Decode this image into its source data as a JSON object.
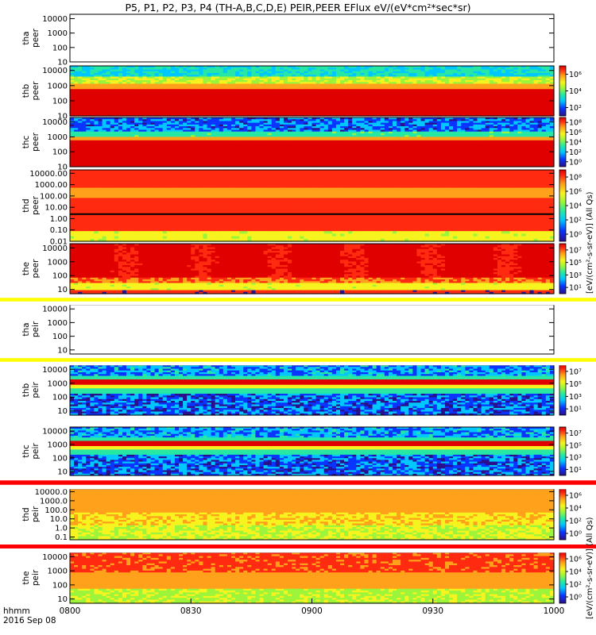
{
  "chart_data": {
    "type": "heatmap",
    "title": "P5, P1, P2, P3, P4 (TH-A,B,C,D,E) PEIR,PEER EFlux eV/(eV*cm²*sec*sr)",
    "x_ticks": [
      "0800",
      "0830",
      "0900",
      "0930",
      "1000"
    ],
    "x_range": [
      "0800",
      "1000"
    ],
    "x_label": "hhmm",
    "date_label": "2016 Sep 08",
    "y_scale": "log",
    "colormap": [
      "#2a0f8a",
      "#0a34ff",
      "#00c8ff",
      "#27e7a4",
      "#9cf53a",
      "#f7f31e",
      "#ffa11a",
      "#ff2b10",
      "#e00000"
    ],
    "colorbar_label_peer": "[eV/(cm²-s-sr-eV)] (All Qs)",
    "colorbar_label_peir": "[eV/(cm²-s-sr-eV)] (All Qs)",
    "panels": [
      {
        "probe": "tha",
        "instrument": "peer",
        "label": "tha\npeer",
        "y_range": [
          10,
          20000
        ],
        "yticks": [
          "10",
          "100",
          "1000",
          "10000"
        ],
        "has_data": false,
        "has_colorbar": false
      },
      {
        "probe": "thb",
        "instrument": "peer",
        "label": "thb\npeer",
        "y_range": [
          10,
          20000
        ],
        "yticks": [
          "10",
          "100",
          "1000",
          "10000"
        ],
        "has_data": true,
        "pattern": "band",
        "colorbar_ticks": [
          "10²",
          "10⁴",
          "10⁶"
        ]
      },
      {
        "probe": "thc",
        "instrument": "peer",
        "label": "thc\npeer",
        "y_range": [
          10,
          20000
        ],
        "yticks": [
          "10",
          "100",
          "1000",
          "10000"
        ],
        "has_data": true,
        "pattern": "band_noisy",
        "colorbar_ticks": [
          "10⁰",
          "10²",
          "10⁴",
          "10⁶",
          "10⁸"
        ]
      },
      {
        "probe": "thd",
        "instrument": "peer",
        "label": "thd\npeer",
        "y_range": [
          0.01,
          20000
        ],
        "yticks": [
          "0.01",
          "0.10",
          "1.00",
          "10.00",
          "100.00",
          "1000.00",
          "10000.00"
        ],
        "has_data": true,
        "pattern": "flat_orange",
        "colorbar_ticks": [
          "10⁰",
          "10²",
          "10⁴",
          "10⁶",
          "10⁸"
        ]
      },
      {
        "probe": "the",
        "instrument": "peer",
        "label": "the\npeer",
        "y_range": [
          5,
          20000
        ],
        "yticks": [
          "10",
          "100",
          "1000",
          "10000"
        ],
        "has_data": true,
        "pattern": "hot",
        "colorbar_ticks": [
          "10¹",
          "10³",
          "10⁵",
          "10⁷"
        ]
      },
      {
        "probe": "tha",
        "instrument": "peir",
        "label": "tha\npeir",
        "y_range": [
          5,
          20000
        ],
        "yticks": [
          "10",
          "100",
          "1000",
          "10000"
        ],
        "has_data": false,
        "has_colorbar": false
      },
      {
        "probe": "thb",
        "instrument": "peir",
        "label": "thb\npeir",
        "y_range": [
          5,
          20000
        ],
        "yticks": [
          "10",
          "100",
          "1000",
          "10000"
        ],
        "has_data": true,
        "pattern": "ion_band",
        "colorbar_ticks": [
          "10¹",
          "10³",
          "10⁵",
          "10⁷"
        ]
      },
      {
        "probe": "thc",
        "instrument": "peir",
        "label": "thc\npeir",
        "y_range": [
          5,
          20000
        ],
        "yticks": [
          "10",
          "100",
          "1000",
          "10000"
        ],
        "has_data": true,
        "pattern": "ion_band",
        "colorbar_ticks": [
          "10¹",
          "10³",
          "10⁵",
          "10⁷"
        ]
      },
      {
        "probe": "thd",
        "instrument": "peir",
        "label": "thd\npeir",
        "y_range": [
          0.05,
          20000
        ],
        "yticks": [
          "0.1",
          "1.0",
          "10.0",
          "100.0",
          "1000.0",
          "10000.0"
        ],
        "has_data": true,
        "pattern": "flat_yellow",
        "colorbar_ticks": [
          "10⁰",
          "10²",
          "10⁴",
          "10⁶"
        ]
      },
      {
        "probe": "the",
        "instrument": "peir",
        "label": "the\npeir",
        "y_range": [
          5,
          20000
        ],
        "yticks": [
          "10",
          "100",
          "1000",
          "10000"
        ],
        "has_data": true,
        "pattern": "ion_hot",
        "colorbar_ticks": [
          "10⁰",
          "10²",
          "10⁴",
          "10⁶"
        ]
      }
    ]
  }
}
